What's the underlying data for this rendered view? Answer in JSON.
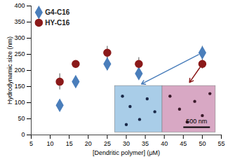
{
  "chart_data": {
    "type": "scatter",
    "x_label": "[Dendritic polymer] (μM)",
    "y_label": "Hydrodynamic size (nm)",
    "xlim": [
      5,
      55
    ],
    "xticks": [
      5,
      10,
      15,
      20,
      25,
      30,
      35,
      40,
      45,
      50,
      55
    ],
    "ylim": [
      0,
      400
    ],
    "yticks": [
      0,
      50,
      100,
      150,
      200,
      250,
      300,
      350,
      400
    ],
    "grid": false,
    "legend": "top-left",
    "annotations": [
      "500 nm"
    ],
    "series": [
      {
        "name": "G4-C16",
        "color": "#4a7ebb",
        "marker": "diamond",
        "x": [
          12.5,
          16.7,
          25,
          33.3,
          50
        ],
        "values": [
          92,
          165,
          220,
          190,
          255
        ],
        "errors": [
          15,
          15,
          20,
          15,
          20
        ]
      },
      {
        "name": "HY-C16",
        "color": "#8b1a1a",
        "marker": "circle",
        "x": [
          12.5,
          16.7,
          25,
          33.3,
          50
        ],
        "values": [
          165,
          220,
          255,
          220,
          220
        ],
        "errors": [
          25,
          10,
          20,
          20,
          15
        ]
      }
    ]
  }
}
